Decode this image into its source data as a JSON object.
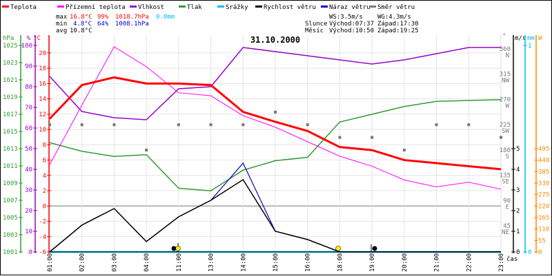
{
  "chart_data": {
    "type": "line",
    "title": "31.10.2000",
    "x": [
      "01:00",
      "02:00",
      "03:00",
      "04:00",
      "11:00",
      "13:00",
      "14:00",
      "15:00",
      "16:00",
      "18:00",
      "19:00",
      "20:00",
      "21:00",
      "22:00",
      "23:00"
    ],
    "xlabel": "čas",
    "legend": [
      {
        "name": "Teplota",
        "color": "#ff0000"
      },
      {
        "name": "Přízemní teplota",
        "color": "#ff00ff"
      },
      {
        "name": "Vlhkost",
        "color": "#9900cc"
      },
      {
        "name": "Tlak",
        "color": "#339933"
      },
      {
        "name": "Srážky",
        "color": "#00bbee"
      },
      {
        "name": "Rychlost větru",
        "color": "#000000"
      },
      {
        "name": "Náraz větru",
        "color": "#0000cc"
      },
      {
        "name": "Směr větru",
        "color": "#777777"
      }
    ],
    "legend_placement": "top",
    "grid": true,
    "axes": {
      "pressure": {
        "unit": "hPa",
        "range": [
          1001,
          1025
        ],
        "ticks": [
          1001,
          1003,
          1005,
          1007,
          1009,
          1011,
          1013,
          1015,
          1017,
          1019,
          1021,
          1023,
          1025
        ],
        "color": "#339933"
      },
      "humidity": {
        "unit": "%",
        "range": [
          0,
          100
        ],
        "ticks": [
          0,
          10,
          20,
          30,
          40,
          50,
          60,
          70,
          80,
          90,
          100
        ],
        "color": "#9900cc"
      },
      "temperature": {
        "unit": "°C",
        "range": [
          -6,
          21
        ],
        "ticks": [
          -6,
          -4,
          -2,
          0,
          2,
          4,
          6,
          8,
          10,
          12,
          14,
          16,
          18,
          20
        ],
        "color": "#ff0000"
      },
      "direction": {
        "unit": "°",
        "range": [
          0,
          360
        ],
        "ticks": [
          {
            "v": 45,
            "l": "NE"
          },
          {
            "v": 90,
            "l": "E"
          },
          {
            "v": 135,
            "l": "SE"
          },
          {
            "v": 180,
            "l": "S"
          },
          {
            "v": 225,
            "l": "SW"
          },
          {
            "v": 270,
            "l": "W"
          },
          {
            "v": 315,
            "l": "NW"
          },
          {
            "v": 360,
            "l": "N"
          }
        ],
        "color": "#777777"
      },
      "wind": {
        "unit": "m/s",
        "range": [
          0,
          5
        ],
        "ticks": [
          0,
          1,
          2,
          3,
          4,
          5
        ],
        "color": "#000000"
      },
      "precip": {
        "unit": "mm",
        "range": [
          0,
          1
        ],
        "ticks": [
          0,
          1
        ],
        "color": "#00bbee"
      },
      "solar": {
        "unit": "W",
        "range": [
          0,
          495
        ],
        "ticks": [
          0,
          55,
          110,
          165,
          220,
          275,
          330,
          385,
          440,
          495
        ],
        "color": "#ff8800"
      }
    },
    "series": [
      {
        "name": "Teplota",
        "axis": "temperature",
        "values": [
          11.4,
          15.8,
          16.8,
          16.0,
          16.0,
          15.8,
          12.3,
          11.0,
          9.8,
          7.7,
          7.3,
          6.0,
          5.6,
          5.2,
          4.8
        ]
      },
      {
        "name": "Přízemní teplota",
        "axis": "temperature",
        "values": [
          5.4,
          13.2,
          20.8,
          18.2,
          14.8,
          14.4,
          11.8,
          10.3,
          8.4,
          6.5,
          5.2,
          3.4,
          2.5,
          3.1,
          2.2
        ]
      },
      {
        "name": "Vlhkost",
        "axis": "humidity",
        "values": [
          85,
          68,
          65,
          64,
          79,
          80,
          99,
          97,
          95,
          93,
          91,
          93,
          96,
          99,
          99
        ]
      },
      {
        "name": "Tlak",
        "axis": "pressure",
        "values": [
          1013.7,
          1012.7,
          1012.1,
          1012.3,
          1008.4,
          1008.1,
          1010.5,
          1011.6,
          1012.0,
          1016.1,
          1017.0,
          1017.9,
          1018.5,
          1018.6,
          1018.7
        ]
      },
      {
        "name": "Srážky",
        "axis": "precip",
        "values": [
          0,
          0,
          0,
          0,
          0,
          0,
          0,
          0,
          0,
          0,
          0,
          0,
          0,
          0,
          0
        ]
      },
      {
        "name": "Rychlost větru",
        "axis": "wind",
        "values": [
          0,
          1.3,
          2.1,
          0.5,
          1.7,
          2.5,
          3.5,
          1.0,
          0.6,
          0,
          0,
          0,
          0,
          0,
          0
        ]
      },
      {
        "name": "Náraz větru",
        "axis": "wind",
        "values": [
          0,
          1.3,
          2.1,
          0.5,
          1.7,
          2.5,
          4.3,
          1.0,
          0.6,
          0,
          0,
          0,
          0,
          0,
          0
        ]
      },
      {
        "name": "Směr větru",
        "axis": "direction",
        "values": [
          225,
          225,
          225,
          180,
          225,
          225,
          225,
          247.5,
          225,
          202.5,
          202.5,
          180,
          225,
          225,
          202.5
        ]
      }
    ]
  },
  "stats": {
    "max_label": "max",
    "max_temp": "16.8°C",
    "max_hum": "99%",
    "max_press": "1018.7hPa",
    "max_precip": "0.0mm",
    "min_label": "min",
    "min_temp": "4.8°C",
    "min_hum": "64%",
    "min_press": "1008.1hPa",
    "avg_label": "avg",
    "avg_temp": "10.8°C",
    "ws": "WS:3.5m/s",
    "wg": "WG:4.3m/s",
    "sun_label": "Slunce",
    "sun_rise": "Východ:07:37",
    "sun_set": "Západ:17:30",
    "moon_label": "Měsíc",
    "moon_rise": "Východ:10:50",
    "moon_set": "Západ:19:25"
  },
  "colors": {
    "stat_max": "#ff0000",
    "stat_min": "#0000cc",
    "precip": "#00bbee",
    "solar": "#ff8800"
  }
}
